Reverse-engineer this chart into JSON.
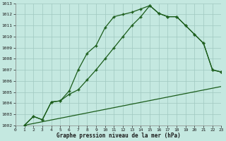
{
  "title": "Graphe pression niveau de la mer (hPa)",
  "bg_color": "#c4e8e0",
  "grid_color": "#a0c8c0",
  "line_color": "#1a5c1a",
  "x_min": 0,
  "x_max": 23,
  "y_min": 1002,
  "y_max": 1013,
  "line1_x": [
    1,
    2,
    3,
    4,
    5,
    6,
    7,
    8,
    9,
    10,
    11,
    12,
    13,
    14,
    15,
    16,
    17,
    18,
    19,
    20,
    21,
    22,
    23
  ],
  "line1_y": [
    1002.0,
    1002.8,
    1002.5,
    1004.1,
    1004.2,
    1005.1,
    1007.0,
    1008.5,
    1009.2,
    1010.8,
    1011.8,
    1012.0,
    1012.2,
    1012.5,
    1012.8,
    1012.1,
    1011.8,
    1011.8,
    1011.0,
    1010.2,
    1009.4,
    1007.0,
    1006.8
  ],
  "line2_x": [
    1,
    2,
    3,
    4,
    5,
    6,
    7,
    8,
    9,
    10,
    11,
    12,
    13,
    14,
    15,
    16,
    17,
    18,
    19,
    20,
    21,
    22,
    23
  ],
  "line2_y": [
    1002.0,
    1002.8,
    1002.5,
    1004.1,
    1004.2,
    1004.8,
    1005.2,
    1006.1,
    1007.0,
    1008.0,
    1009.0,
    1010.0,
    1011.0,
    1011.8,
    1012.8,
    1012.1,
    1011.8,
    1011.8,
    1011.0,
    1010.2,
    1009.4,
    1007.0,
    1006.8
  ],
  "line3_x": [
    1,
    23
  ],
  "line3_y": [
    1002.0,
    1005.5
  ],
  "yticks": [
    1002,
    1003,
    1004,
    1005,
    1006,
    1007,
    1008,
    1009,
    1010,
    1011,
    1012,
    1013
  ],
  "xticks": [
    0,
    1,
    2,
    3,
    4,
    5,
    6,
    7,
    8,
    9,
    10,
    11,
    12,
    13,
    14,
    15,
    16,
    17,
    18,
    19,
    20,
    21,
    22,
    23
  ]
}
